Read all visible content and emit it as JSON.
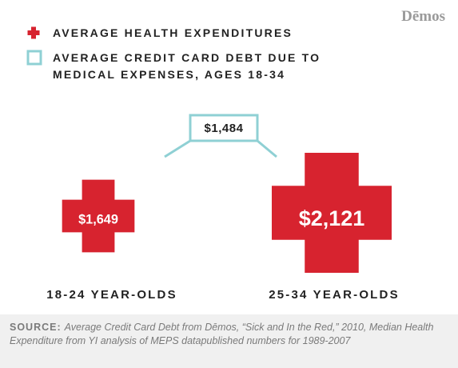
{
  "chart_data": {
    "type": "pictogram",
    "logo": "Dēmos",
    "categories": [
      "18-24 YEAR-OLDS",
      "25-34 YEAR-OLDS"
    ],
    "series": [
      {
        "name": "AVERAGE HEALTH EXPENDITURES",
        "color": "#d7232f",
        "values": [
          1649,
          2121
        ],
        "value_labels": [
          "$1,649",
          "$2,121"
        ]
      },
      {
        "name": "AVERAGE CREDIT CARD DEBT DUE TO MEDICAL EXPENSES, AGES 18-34",
        "color": "#8fd0d4",
        "value": 1484,
        "value_label": "$1,484"
      }
    ],
    "source": {
      "label": "SOURCE:",
      "text": "Average Credit Card Debt from Dēmos, “Sick and In the Red,” 2010, Median Health Expenditure from YI analysis of MEPS datapublished numbers for 1989-2007"
    }
  }
}
